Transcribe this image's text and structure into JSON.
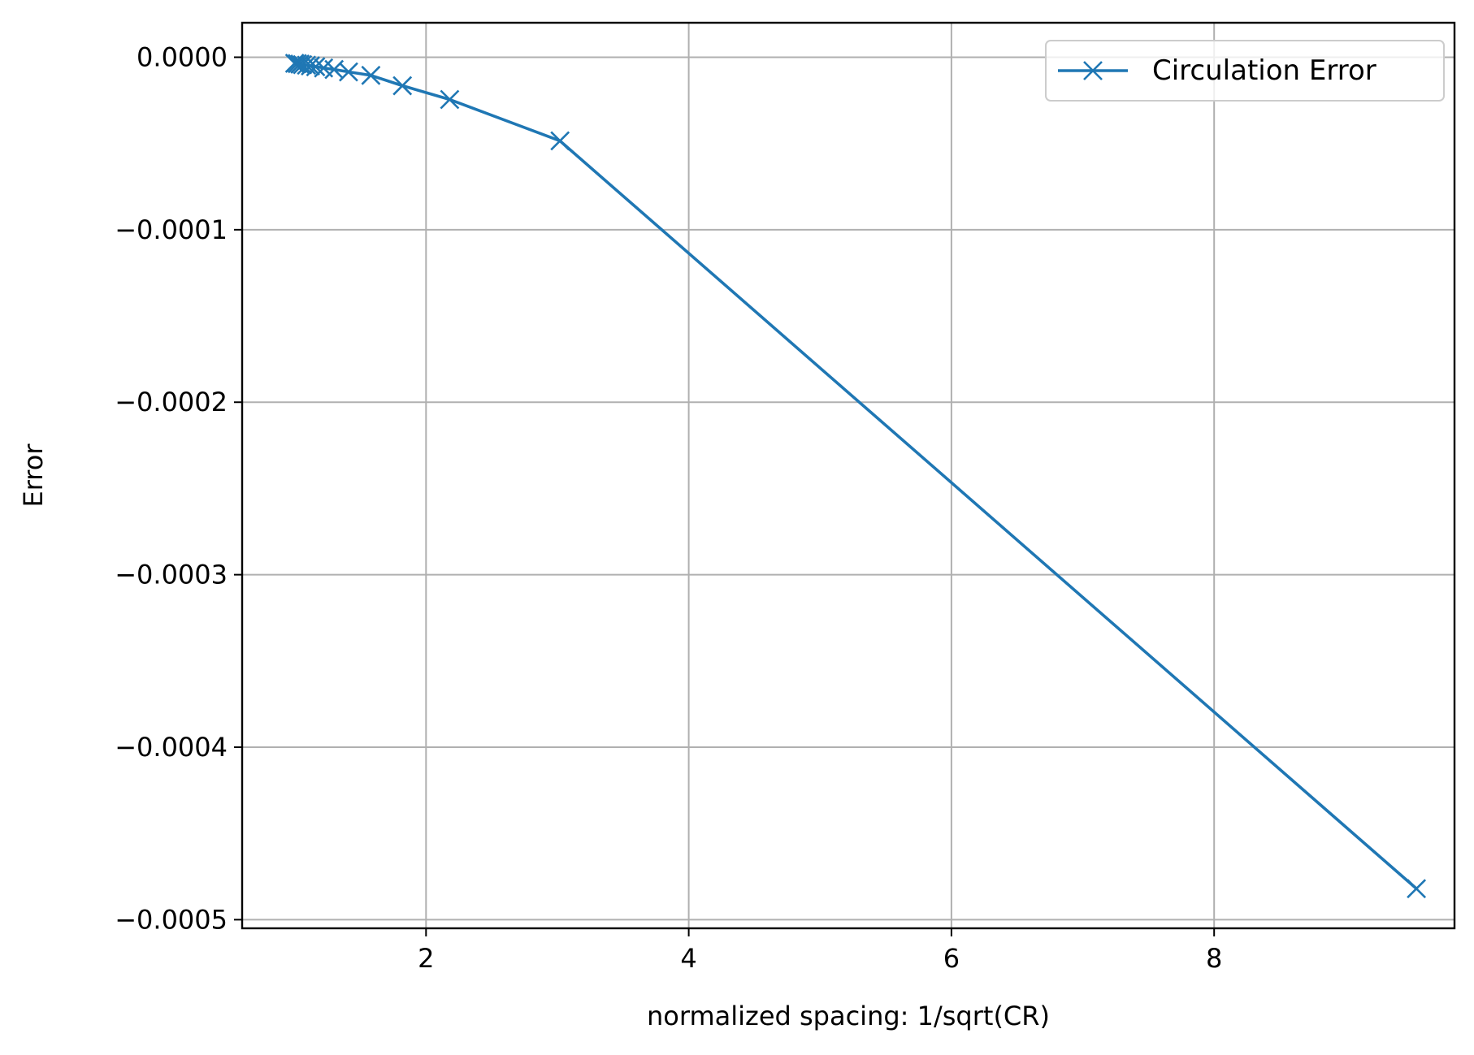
{
  "chart_data": {
    "type": "line",
    "title": "",
    "xlabel": "normalized spacing: 1/sqrt(CR)",
    "ylabel": "Error",
    "xlim": [
      0.6,
      9.83
    ],
    "ylim": [
      -0.000505,
      2e-05
    ],
    "xticks": [
      2,
      4,
      6,
      8
    ],
    "xtick_labels": [
      "2",
      "4",
      "6",
      "8"
    ],
    "yticks": [
      0.0,
      -0.0001,
      -0.0002,
      -0.0003,
      -0.0004,
      -0.0005
    ],
    "ytick_labels": [
      "0.0000",
      "−0.0001",
      "−0.0002",
      "−0.0003",
      "−0.0004",
      "−0.0005"
    ],
    "grid": true,
    "legend_position": "top-right",
    "series": [
      {
        "name": "Circulation Error",
        "color": "#1f77b4",
        "marker": "x",
        "x": [
          1.0,
          1.02,
          1.04,
          1.06,
          1.09,
          1.12,
          1.16,
          1.22,
          1.3,
          1.41,
          1.58,
          1.82,
          2.18,
          3.02,
          9.54
        ],
        "y": [
          -3.5e-06,
          -3.7e-06,
          -4e-06,
          -4.3e-06,
          -4.6e-06,
          -5e-06,
          -5.5e-06,
          -6.2e-06,
          -7.1e-06,
          -8.5e-06,
          -1.05e-05,
          -1.65e-05,
          -2.45e-05,
          -4.85e-05,
          -0.000482
        ]
      }
    ]
  }
}
